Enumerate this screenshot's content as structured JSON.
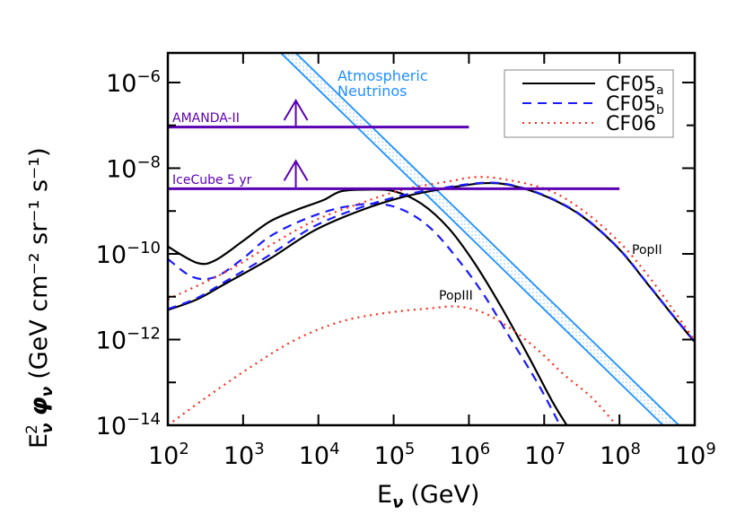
{
  "chart_data": {
    "type": "line",
    "xlabel": "E",
    "xlabel_sub": "ν",
    "xlabel_unit": "(GeV)",
    "ylabel": "E",
    "ylabel_sup": "2",
    "ylabel_sub": "ν",
    "ylabel_phi": "φ",
    "ylabel_unit": "(GeV cm⁻² sr⁻¹ s⁻¹)",
    "xscale": "log",
    "yscale": "log",
    "xlim": [
      100,
      1000000000
    ],
    "ylim": [
      1e-14,
      4.9e-06
    ],
    "grid": false,
    "legend_placement": "top-right",
    "x_ticks": [
      {
        "base": "10",
        "exp": "2"
      },
      {
        "base": "10",
        "exp": "3"
      },
      {
        "base": "10",
        "exp": "4"
      },
      {
        "base": "10",
        "exp": "5"
      },
      {
        "base": "10",
        "exp": "6"
      },
      {
        "base": "10",
        "exp": "7"
      },
      {
        "base": "10",
        "exp": "8"
      },
      {
        "base": "10",
        "exp": "9"
      }
    ],
    "y_ticks": [
      {
        "base": "10",
        "exp": "−6"
      },
      {
        "base": "10",
        "exp": "−8"
      },
      {
        "base": "10",
        "exp": "−10"
      },
      {
        "base": "10",
        "exp": "−12"
      },
      {
        "base": "10",
        "exp": "−14"
      }
    ],
    "legend": [
      {
        "name": "CF05",
        "sub": "a",
        "color": "#000000",
        "style": "solid"
      },
      {
        "name": "CF05",
        "sub": "b",
        "color": "#1a1aff",
        "style": "dashed"
      },
      {
        "name": "CF06",
        "sub": "",
        "color": "#ff2a1a",
        "style": "dotted"
      }
    ],
    "annotations": {
      "atmospheric_1": "Atmospheric",
      "atmospheric_2": "Neutrinos",
      "amanda": "AMANDA-II",
      "icecube": "IceCube 5 yr",
      "popii": "PopII",
      "popiii": "PopIII"
    },
    "colors": {
      "limits": "#5a00b4",
      "atmospheric": "#1e90ff",
      "cf05a": "#000000",
      "cf05b": "#1a1aff",
      "cf06": "#ff2a1a"
    },
    "note_units": "series points given as [log10 E/GeV, log10 E^2 phi]",
    "limits": [
      {
        "name": "AMANDA-II",
        "log_flux": -7.04,
        "log_e_range": [
          2,
          6
        ],
        "arrow_log_e": 3.7,
        "arrow_tip_log_flux": -6.42
      },
      {
        "name": "IceCube 5 yr",
        "log_flux": -8.48,
        "log_e_range": [
          2,
          8
        ],
        "arrow_log_e": 3.7,
        "arrow_tip_log_flux": -7.83
      }
    ],
    "atmospheric_band": {
      "lower_edge": [
        [
          3.5,
          -5.31
        ],
        [
          8.58,
          -14
        ]
      ],
      "upper_edge": [
        [
          3.7,
          -5.31
        ],
        [
          8.79,
          -14
        ]
      ]
    },
    "series": [
      {
        "legend": "CF05a",
        "population": "PopIII",
        "style": "solid",
        "color": "#000000",
        "points": [
          [
            2,
            -9.83
          ],
          [
            2.39,
            -10.21
          ],
          [
            2.63,
            -10.15
          ],
          [
            2.99,
            -9.71
          ],
          [
            3.35,
            -9.25
          ],
          [
            3.7,
            -8.98
          ],
          [
            4.06,
            -8.75
          ],
          [
            4.3,
            -8.54
          ],
          [
            4.65,
            -8.5
          ],
          [
            5.01,
            -8.54
          ],
          [
            5.37,
            -8.83
          ],
          [
            5.73,
            -9.4
          ],
          [
            6.08,
            -10.23
          ],
          [
            6.44,
            -11.27
          ],
          [
            6.8,
            -12.42
          ],
          [
            7.1,
            -13.42
          ],
          [
            7.3,
            -14
          ]
        ]
      },
      {
        "legend": "CF05b",
        "population": "PopIII",
        "style": "dashed",
        "color": "#1a1aff",
        "points": [
          [
            2,
            -10.12
          ],
          [
            2.33,
            -10.54
          ],
          [
            2.63,
            -10.54
          ],
          [
            2.99,
            -10.12
          ],
          [
            3.35,
            -9.6
          ],
          [
            3.82,
            -9.19
          ],
          [
            4.3,
            -8.92
          ],
          [
            4.77,
            -8.83
          ],
          [
            5.13,
            -8.98
          ],
          [
            5.49,
            -9.4
          ],
          [
            5.85,
            -10.12
          ],
          [
            6.2,
            -10.96
          ],
          [
            6.56,
            -12.0
          ],
          [
            6.92,
            -13.04
          ],
          [
            7.21,
            -14
          ]
        ]
      },
      {
        "legend": "CF05a",
        "population": "PopII",
        "style": "solid",
        "color": "#000000",
        "points": [
          [
            2,
            -11.31
          ],
          [
            2.39,
            -11.06
          ],
          [
            2.75,
            -10.71
          ],
          [
            3.35,
            -10.12
          ],
          [
            3.94,
            -9.46
          ],
          [
            4.54,
            -9.0
          ],
          [
            5.13,
            -8.67
          ],
          [
            5.73,
            -8.46
          ],
          [
            6.2,
            -8.35
          ],
          [
            6.56,
            -8.4
          ],
          [
            7.04,
            -8.67
          ],
          [
            7.51,
            -9.13
          ],
          [
            7.99,
            -9.88
          ],
          [
            8.35,
            -10.65
          ],
          [
            8.7,
            -11.42
          ],
          [
            8.99,
            -12.04
          ]
        ]
      },
      {
        "legend": "CF05b",
        "population": "PopII",
        "style": "dashed",
        "color": "#1a1aff",
        "points": [
          [
            2,
            -11.29
          ],
          [
            2.39,
            -11.03
          ],
          [
            2.75,
            -10.66
          ],
          [
            3.35,
            -10.03
          ],
          [
            3.94,
            -9.36
          ],
          [
            4.54,
            -8.93
          ],
          [
            5.13,
            -8.63
          ],
          [
            5.73,
            -8.44
          ],
          [
            6.2,
            -8.34
          ],
          [
            6.56,
            -8.39
          ],
          [
            7.04,
            -8.66
          ],
          [
            7.51,
            -9.12
          ],
          [
            7.99,
            -9.87
          ],
          [
            8.35,
            -10.64
          ],
          [
            8.7,
            -11.41
          ],
          [
            8.99,
            -12.03
          ]
        ]
      },
      {
        "legend": "CF06",
        "population": "PopII",
        "style": "dotted",
        "color": "#ff2a1a",
        "points": [
          [
            2,
            -11.06
          ],
          [
            2.75,
            -10.44
          ],
          [
            3.35,
            -9.81
          ],
          [
            3.94,
            -9.23
          ],
          [
            4.54,
            -8.83
          ],
          [
            5.13,
            -8.5
          ],
          [
            5.73,
            -8.31
          ],
          [
            6.08,
            -8.21
          ],
          [
            6.44,
            -8.25
          ],
          [
            7.04,
            -8.5
          ],
          [
            7.51,
            -8.98
          ],
          [
            7.99,
            -9.71
          ],
          [
            8.35,
            -10.44
          ],
          [
            8.7,
            -11.27
          ],
          [
            8.99,
            -12.0
          ]
        ]
      },
      {
        "legend": "CF06",
        "population": "PopIII",
        "style": "dotted",
        "color": "#ff2a1a",
        "points": [
          [
            2,
            -14
          ],
          [
            2.51,
            -13.35
          ],
          [
            3.11,
            -12.63
          ],
          [
            3.7,
            -12.0
          ],
          [
            4.3,
            -11.58
          ],
          [
            4.89,
            -11.38
          ],
          [
            5.49,
            -11.27
          ],
          [
            5.85,
            -11.23
          ],
          [
            6.2,
            -11.38
          ],
          [
            6.56,
            -11.75
          ],
          [
            6.92,
            -12.25
          ],
          [
            7.27,
            -12.83
          ],
          [
            7.63,
            -13.35
          ],
          [
            7.96,
            -14
          ]
        ]
      }
    ]
  }
}
